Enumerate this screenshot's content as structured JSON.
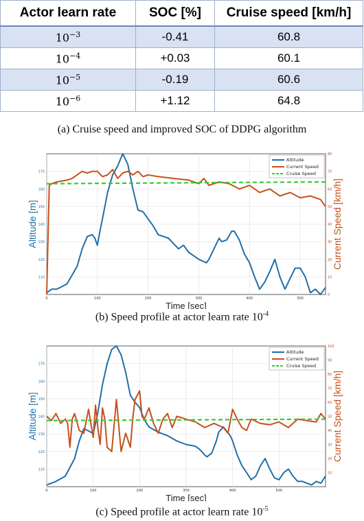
{
  "table": {
    "headers": [
      "Actor learn rate",
      "SOC [%]",
      "Cruise speed [km/h]"
    ],
    "rows": [
      {
        "rate_base": "10",
        "rate_exp": "−3",
        "soc": "-0.41",
        "speed": "60.8"
      },
      {
        "rate_base": "10",
        "rate_exp": "−4",
        "soc": "+0.03",
        "speed": "60.1"
      },
      {
        "rate_base": "10",
        "rate_exp": "−5",
        "soc": "-0.19",
        "speed": "60.6"
      },
      {
        "rate_base": "10",
        "rate_exp": "−6",
        "soc": "+1.12",
        "speed": "64.8"
      }
    ]
  },
  "captions": {
    "a": "(a) Cruise speed and improved SOC of DDPG algorithm",
    "b_text": "(b) Speed profile at actor learn rate 10",
    "b_exp": "-4",
    "c_text": "(c) Speed profile at actor learn rate 10",
    "c_exp": "-5"
  },
  "colors": {
    "altitude": "#1f6fa8",
    "current_speed": "#c5501b",
    "cruise_speed": "#33cc33",
    "table_header_rule": "#6d86b3",
    "table_shade": "#d9e2f3"
  },
  "chart_data": [
    {
      "type": "line",
      "xlabel": "Time [sec]",
      "ylabel_left": "Altitude [m]",
      "ylabel_right": "Current Speed [km/h]",
      "xlim": [
        0,
        550
      ],
      "ylim_left": [
        100,
        180
      ],
      "ylim_right": [
        0,
        80
      ],
      "xticks": [
        0,
        100,
        200,
        300,
        400,
        500
      ],
      "yticks_left": [
        110,
        120,
        130,
        140,
        150,
        160,
        170
      ],
      "yticks_right": [
        0,
        10,
        20,
        30,
        40,
        50,
        60,
        70,
        80
      ],
      "grid": true,
      "legend_position": "top-right",
      "series": [
        {
          "name": "Altitude",
          "axis": "left",
          "x": [
            0,
            10,
            20,
            40,
            60,
            70,
            80,
            90,
            95,
            100,
            105,
            110,
            120,
            130,
            140,
            150,
            160,
            170,
            180,
            190,
            200,
            210,
            220,
            240,
            260,
            270,
            280,
            300,
            315,
            320,
            330,
            340,
            345,
            355,
            365,
            370,
            380,
            390,
            400,
            410,
            420,
            430,
            440,
            450,
            460,
            470,
            480,
            490,
            500,
            510,
            520,
            530,
            540,
            550
          ],
          "y": [
            101,
            103,
            103,
            106,
            116,
            126,
            133,
            134,
            132,
            128,
            136,
            143,
            158,
            168,
            173,
            180,
            174,
            160,
            148,
            147,
            143,
            139,
            134,
            132,
            126,
            128,
            124,
            120,
            118,
            120,
            126,
            132,
            130,
            131,
            136,
            136,
            131,
            123,
            118,
            110,
            103,
            107,
            113,
            120,
            110,
            103,
            109,
            115,
            115,
            110,
            101,
            103,
            100,
            104
          ]
        },
        {
          "name": "Current Speed",
          "axis": "right",
          "x": [
            0,
            5,
            10,
            20,
            40,
            50,
            60,
            70,
            80,
            90,
            100,
            110,
            120,
            130,
            140,
            150,
            160,
            170,
            180,
            190,
            200,
            220,
            250,
            280,
            300,
            310,
            320,
            340,
            360,
            380,
            400,
            420,
            440,
            460,
            480,
            500,
            520,
            540,
            550
          ],
          "y": [
            0,
            62,
            63,
            64,
            65,
            66,
            68,
            70,
            69,
            70,
            70,
            67,
            68,
            71,
            66,
            69,
            70,
            68,
            70,
            67,
            68,
            67,
            66,
            65,
            63,
            66,
            62,
            64,
            63,
            60,
            62,
            58,
            60,
            56,
            58,
            55,
            56,
            54,
            50
          ]
        },
        {
          "name": "Cruise Speed",
          "axis": "right",
          "x": [
            0,
            550
          ],
          "y": [
            63,
            64
          ]
        }
      ]
    },
    {
      "type": "line",
      "xlabel": "Time [sec]",
      "ylabel_left": "Altitude [m]",
      "ylabel_right": "Current Speed [km/h]",
      "xlim": [
        0,
        600
      ],
      "ylim_left": [
        100,
        180
      ],
      "ylim_right": [
        0,
        100
      ],
      "xticks": [
        0,
        100,
        200,
        300,
        400,
        500
      ],
      "yticks_left": [
        110,
        120,
        130,
        140,
        150,
        160,
        170
      ],
      "yticks_right": [
        10,
        20,
        30,
        40,
        50,
        60,
        70,
        80,
        90,
        100
      ],
      "grid": true,
      "legend_position": "top-right",
      "series": [
        {
          "name": "Altitude",
          "axis": "left",
          "x": [
            0,
            10,
            20,
            40,
            60,
            70,
            80,
            95,
            100,
            110,
            120,
            130,
            140,
            150,
            160,
            170,
            180,
            190,
            200,
            210,
            220,
            240,
            260,
            280,
            300,
            320,
            330,
            340,
            345,
            355,
            365,
            370,
            380,
            395,
            400,
            410,
            420,
            430,
            440,
            450,
            460,
            470,
            480,
            490,
            500,
            510,
            520,
            530,
            540,
            550,
            560,
            570,
            580,
            590,
            600
          ],
          "y": [
            101,
            102,
            103,
            106,
            116,
            126,
            133,
            131,
            130,
            142,
            158,
            170,
            178,
            180,
            175,
            165,
            152,
            148,
            145,
            138,
            134,
            131,
            129,
            126,
            124,
            123,
            121,
            118,
            117,
            119,
            126,
            131,
            134,
            129,
            126,
            118,
            112,
            108,
            104,
            106,
            112,
            116,
            110,
            105,
            104,
            108,
            110,
            106,
            103,
            103,
            102,
            101,
            103,
            102,
            106
          ]
        },
        {
          "name": "Current Speed",
          "axis": "right",
          "x": [
            0,
            10,
            20,
            30,
            40,
            45,
            50,
            55,
            60,
            70,
            80,
            90,
            100,
            105,
            110,
            115,
            120,
            125,
            130,
            140,
            150,
            160,
            170,
            180,
            185,
            190,
            200,
            205,
            210,
            220,
            230,
            240,
            250,
            260,
            270,
            280,
            300,
            320,
            340,
            360,
            380,
            390,
            400,
            410,
            420,
            430,
            440,
            460,
            480,
            500,
            520,
            540,
            560,
            580,
            590,
            600
          ],
          "y": [
            50,
            47,
            52,
            45,
            48,
            45,
            28,
            48,
            52,
            40,
            38,
            55,
            35,
            58,
            42,
            30,
            56,
            48,
            28,
            25,
            62,
            25,
            38,
            28,
            48,
            62,
            68,
            50,
            48,
            56,
            45,
            38,
            48,
            52,
            42,
            50,
            48,
            46,
            42,
            45,
            42,
            38,
            55,
            48,
            42,
            40,
            48,
            45,
            44,
            46,
            42,
            48,
            47,
            46,
            52,
            48
          ]
        },
        {
          "name": "Cruise Speed",
          "axis": "right",
          "x": [
            0,
            600
          ],
          "y": [
            47,
            48
          ]
        }
      ]
    }
  ]
}
